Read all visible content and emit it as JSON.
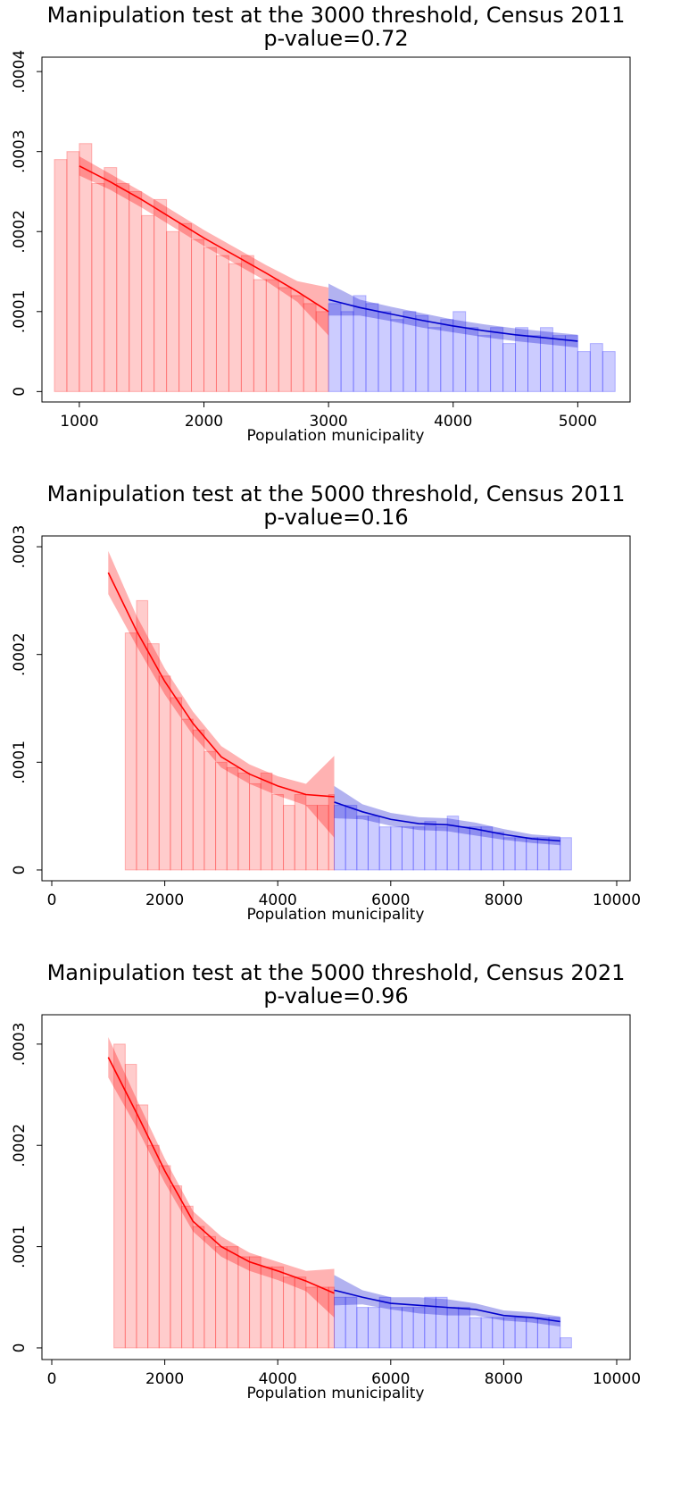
{
  "chart_data": [
    {
      "type": "histogram",
      "title": "Manipulation test at the 3000 threshold, Census 2011",
      "subtitle": "p-value=0.72",
      "xlabel": "Population municipality",
      "xlim": [
        700,
        5420
      ],
      "ylim": [
        -1.3e-05,
        0.000418
      ],
      "xticks": [
        1000,
        2000,
        3000,
        4000,
        5000
      ],
      "yticks": [
        0,
        {
          "value": 0.0001,
          "label": ".0001"
        },
        {
          "value": 0.0002,
          "label": ".0002"
        },
        {
          "value": 0.0003,
          "label": ".0003"
        },
        {
          "value": 0.0004,
          "label": ".0004"
        }
      ],
      "series": [
        {
          "color": "#ff0000",
          "bins": [
            800,
            900,
            1000,
            1100,
            1200,
            1300,
            1400,
            1500,
            1600,
            1700,
            1800,
            1900,
            2000,
            2100,
            2200,
            2300,
            2400,
            2500,
            2600,
            2700,
            2800,
            2900,
            3000
          ],
          "values": [
            0.00029,
            0.0003,
            0.00031,
            0.00026,
            0.00028,
            0.00026,
            0.00025,
            0.00022,
            0.00024,
            0.0002,
            0.00021,
            0.00019,
            0.00018,
            0.00017,
            0.00016,
            0.00017,
            0.00014,
            0.00014,
            0.00013,
            0.00012,
            0.00011,
            0.0001
          ]
        },
        {
          "color": "#0000ff",
          "bins": [
            3000,
            3100,
            3200,
            3300,
            3400,
            3500,
            3600,
            3700,
            3800,
            3900,
            4000,
            4100,
            4200,
            4300,
            4400,
            4500,
            4600,
            4700,
            4800,
            4900,
            5000,
            5100,
            5200,
            5300
          ],
          "values": [
            0.00011,
            0.0001,
            0.00012,
            0.00011,
            0.0001,
            9e-05,
            0.0001,
            9.5e-05,
            8e-05,
            9e-05,
            0.0001,
            8e-05,
            7e-05,
            8e-05,
            6e-05,
            8e-05,
            7e-05,
            8e-05,
            7e-05,
            7e-05,
            5e-05,
            6e-05,
            5e-05
          ]
        }
      ],
      "fits": [
        {
          "color": "#ff0000",
          "x": [
            1000,
            1250,
            1500,
            1750,
            2000,
            2250,
            2500,
            2750,
            3000
          ],
          "values": [
            0.000282,
            0.000262,
            0.00024,
            0.000216,
            0.000192,
            0.00017,
            0.000148,
            0.000125,
            0.0001
          ],
          "lower": [
            0.00027,
            0.000252,
            0.00023,
            0.000206,
            0.000182,
            0.00016,
            0.000138,
            0.000112,
            7e-05
          ],
          "upper": [
            0.000294,
            0.000272,
            0.00025,
            0.000226,
            0.000202,
            0.00018,
            0.000158,
            0.000138,
            0.00013
          ]
        },
        {
          "color": "#0000cc",
          "x": [
            3000,
            3250,
            3500,
            3750,
            4000,
            4250,
            4500,
            4750,
            5000
          ],
          "values": [
            0.000115,
            0.000105,
            9.7e-05,
            8.9e-05,
            8.2e-05,
            7.6e-05,
            7.1e-05,
            6.7e-05,
            6.3e-05
          ],
          "lower": [
            9.5e-05,
            9.5e-05,
            8.8e-05,
            8e-05,
            7.4e-05,
            6.8e-05,
            6.3e-05,
            5.9e-05,
            5.5e-05
          ],
          "upper": [
            0.000135,
            0.000115,
            0.000106,
            9.8e-05,
            9e-05,
            8.4e-05,
            7.9e-05,
            7.5e-05,
            7.1e-05
          ]
        }
      ]
    },
    {
      "type": "histogram",
      "title": "Manipulation test at the 5000 threshold, Census 2011",
      "subtitle": "p-value=0.16",
      "xlabel": "Population municipality",
      "xlim": [
        -174,
        10237
      ],
      "ylim": [
        -1e-05,
        0.00031
      ],
      "xticks": [
        0,
        2000,
        4000,
        6000,
        8000,
        10000
      ],
      "yticks": [
        0,
        {
          "value": 0.0001,
          "label": ".0001"
        },
        {
          "value": 0.0002,
          "label": ".0002"
        },
        {
          "value": 0.0003,
          "label": ".0003"
        }
      ],
      "series": [
        {
          "color": "#ff0000",
          "bins": [
            1300,
            1500,
            1700,
            1900,
            2100,
            2300,
            2500,
            2700,
            2900,
            3100,
            3300,
            3500,
            3700,
            3900,
            4100,
            4300,
            4500,
            4700,
            4900,
            5000
          ],
          "values": [
            0.00022,
            0.00025,
            0.00021,
            0.00018,
            0.00016,
            0.00014,
            0.00013,
            0.00011,
            0.0001,
            9.5e-05,
            9e-05,
            8e-05,
            9e-05,
            7e-05,
            6e-05,
            7e-05,
            6e-05,
            6e-05,
            7e-05
          ]
        },
        {
          "color": "#0000ff",
          "bins": [
            5000,
            5200,
            5400,
            5600,
            5800,
            6000,
            6200,
            6400,
            6600,
            6800,
            7000,
            7200,
            7400,
            7600,
            7800,
            8000,
            8200,
            8400,
            8600,
            8800,
            9000,
            9200
          ],
          "values": [
            6e-05,
            6e-05,
            5e-05,
            5e-05,
            4e-05,
            4e-05,
            4e-05,
            4e-05,
            4.5e-05,
            4e-05,
            5e-05,
            4e-05,
            4e-05,
            4e-05,
            3.5e-05,
            3e-05,
            3e-05,
            3e-05,
            3e-05,
            3e-05,
            3e-05
          ]
        }
      ],
      "fits": [
        {
          "color": "#ff0000",
          "x": [
            1000,
            1500,
            2000,
            2500,
            3000,
            3500,
            4000,
            4500,
            5000
          ],
          "values": [
            0.000276,
            0.000222,
            0.000175,
            0.000136,
            0.000105,
            8.9e-05,
            7.8e-05,
            7e-05,
            6.8e-05
          ],
          "lower": [
            0.000256,
            0.000208,
            0.000163,
            0.000125,
            9.5e-05,
            8e-05,
            6.9e-05,
            6e-05,
            3e-05
          ],
          "upper": [
            0.000296,
            0.000236,
            0.000187,
            0.000147,
            0.000115,
            9.8e-05,
            8.7e-05,
            8e-05,
            0.000106
          ]
        },
        {
          "color": "#0000cc",
          "x": [
            5000,
            5500,
            6000,
            6500,
            7000,
            7500,
            8000,
            8500,
            9000
          ],
          "values": [
            6.3e-05,
            5.4e-05,
            4.7e-05,
            4.3e-05,
            4.2e-05,
            3.8e-05,
            3.3e-05,
            2.9e-05,
            2.7e-05
          ],
          "lower": [
            4.8e-05,
            4.7e-05,
            4.1e-05,
            3.7e-05,
            3.6e-05,
            3.2e-05,
            2.8e-05,
            2.5e-05,
            2.3e-05
          ],
          "upper": [
            7.8e-05,
            6.1e-05,
            5.3e-05,
            4.9e-05,
            4.8e-05,
            4.4e-05,
            3.8e-05,
            3.3e-05,
            3.1e-05
          ]
        }
      ]
    },
    {
      "type": "histogram",
      "title": "Manipulation test at the 5000 threshold, Census 2021",
      "subtitle": "p-value=0.96",
      "xlabel": "Population municipality",
      "xlim": [
        -174,
        10237
      ],
      "ylim": [
        -1.15e-05,
        0.000329
      ],
      "xticks": [
        0,
        2000,
        4000,
        6000,
        8000,
        10000
      ],
      "yticks": [
        0,
        {
          "value": 0.0001,
          "label": ".0001"
        },
        {
          "value": 0.0002,
          "label": ".0002"
        },
        {
          "value": 0.0003,
          "label": ".0003"
        }
      ],
      "series": [
        {
          "color": "#ff0000",
          "bins": [
            1100,
            1300,
            1500,
            1700,
            1900,
            2100,
            2300,
            2500,
            2700,
            2900,
            3100,
            3300,
            3500,
            3700,
            3900,
            4100,
            4300,
            4500,
            4700,
            4900,
            5000
          ],
          "values": [
            0.0003,
            0.00028,
            0.00024,
            0.0002,
            0.00018,
            0.00016,
            0.00014,
            0.00012,
            0.00011,
            0.0001,
            0.0001,
            9e-05,
            9e-05,
            8e-05,
            8e-05,
            7e-05,
            7e-05,
            6e-05,
            6e-05,
            6e-05
          ]
        },
        {
          "color": "#0000ff",
          "bins": [
            5000,
            5200,
            5400,
            5600,
            5800,
            6000,
            6200,
            6400,
            6600,
            6800,
            7000,
            7200,
            7400,
            7600,
            7800,
            8000,
            8200,
            8400,
            8600,
            8800,
            9000,
            9200
          ],
          "values": [
            5e-05,
            5e-05,
            4e-05,
            4e-05,
            5e-05,
            4e-05,
            4e-05,
            4e-05,
            5e-05,
            5e-05,
            4e-05,
            4e-05,
            3e-05,
            3e-05,
            3e-05,
            3e-05,
            3e-05,
            3e-05,
            3e-05,
            3e-05,
            1e-05
          ]
        }
      ],
      "fits": [
        {
          "color": "#ff0000",
          "x": [
            1000,
            1500,
            2000,
            2500,
            3000,
            3500,
            4000,
            4500,
            5000
          ],
          "values": [
            0.000287,
            0.000232,
            0.000175,
            0.000125,
            0.0001,
            8.5e-05,
            7.6e-05,
            6.6e-05,
            5.4e-05
          ],
          "lower": [
            0.000267,
            0.000218,
            0.000163,
            0.000115,
            9e-05,
            7.6e-05,
            6.7e-05,
            5.6e-05,
            3e-05
          ],
          "upper": [
            0.000307,
            0.000246,
            0.000187,
            0.000135,
            0.00011,
            9.4e-05,
            8.5e-05,
            7.6e-05,
            7.8e-05
          ]
        },
        {
          "color": "#0000cc",
          "x": [
            5000,
            5500,
            6000,
            6500,
            7000,
            7500,
            8000,
            8500,
            9000
          ],
          "values": [
            5.7e-05,
            5e-05,
            4.4e-05,
            4.2e-05,
            4e-05,
            3.8e-05,
            3.2e-05,
            3e-05,
            2.6e-05
          ],
          "lower": [
            4.2e-05,
            4.3e-05,
            3.8e-05,
            3.4e-05,
            3.2e-05,
            3.2e-05,
            2.7e-05,
            2.5e-05,
            2.1e-05
          ],
          "upper": [
            7.2e-05,
            5.7e-05,
            5e-05,
            5e-05,
            4.8e-05,
            4.4e-05,
            3.7e-05,
            3.5e-05,
            3.1e-05
          ]
        }
      ]
    }
  ]
}
